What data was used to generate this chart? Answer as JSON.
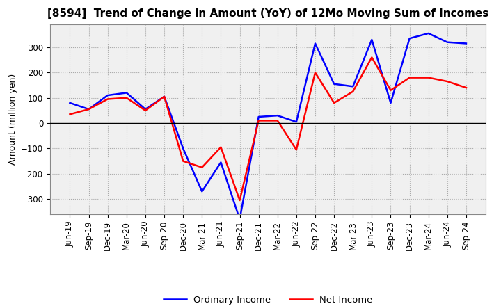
{
  "title": "[8594]  Trend of Change in Amount (YoY) of 12Mo Moving Sum of Incomes",
  "ylabel": "Amount (million yen)",
  "xlabels": [
    "Jun-19",
    "Sep-19",
    "Dec-19",
    "Mar-20",
    "Jun-20",
    "Sep-20",
    "Dec-20",
    "Mar-21",
    "Jun-21",
    "Sep-21",
    "Dec-21",
    "Mar-22",
    "Jun-22",
    "Sep-22",
    "Dec-22",
    "Mar-23",
    "Jun-23",
    "Sep-23",
    "Dec-23",
    "Mar-24",
    "Jun-24",
    "Sep-24"
  ],
  "ordinary_income": [
    80,
    55,
    110,
    120,
    55,
    105,
    -100,
    -270,
    -155,
    -380,
    25,
    30,
    5,
    315,
    155,
    145,
    330,
    80,
    335,
    355,
    320,
    315
  ],
  "net_income": [
    35,
    55,
    95,
    100,
    50,
    105,
    -150,
    -175,
    -95,
    -305,
    10,
    10,
    -105,
    200,
    80,
    125,
    260,
    130,
    180,
    180,
    165,
    140
  ],
  "ordinary_color": "#0000ff",
  "net_color": "#ff0000",
  "ylim": [
    -360,
    390
  ],
  "yticks": [
    -300,
    -200,
    -100,
    0,
    100,
    200,
    300
  ],
  "background_color": "#ffffff",
  "grid_color": "#aaaaaa",
  "title_fontsize": 11,
  "label_fontsize": 9,
  "tick_fontsize": 8.5
}
